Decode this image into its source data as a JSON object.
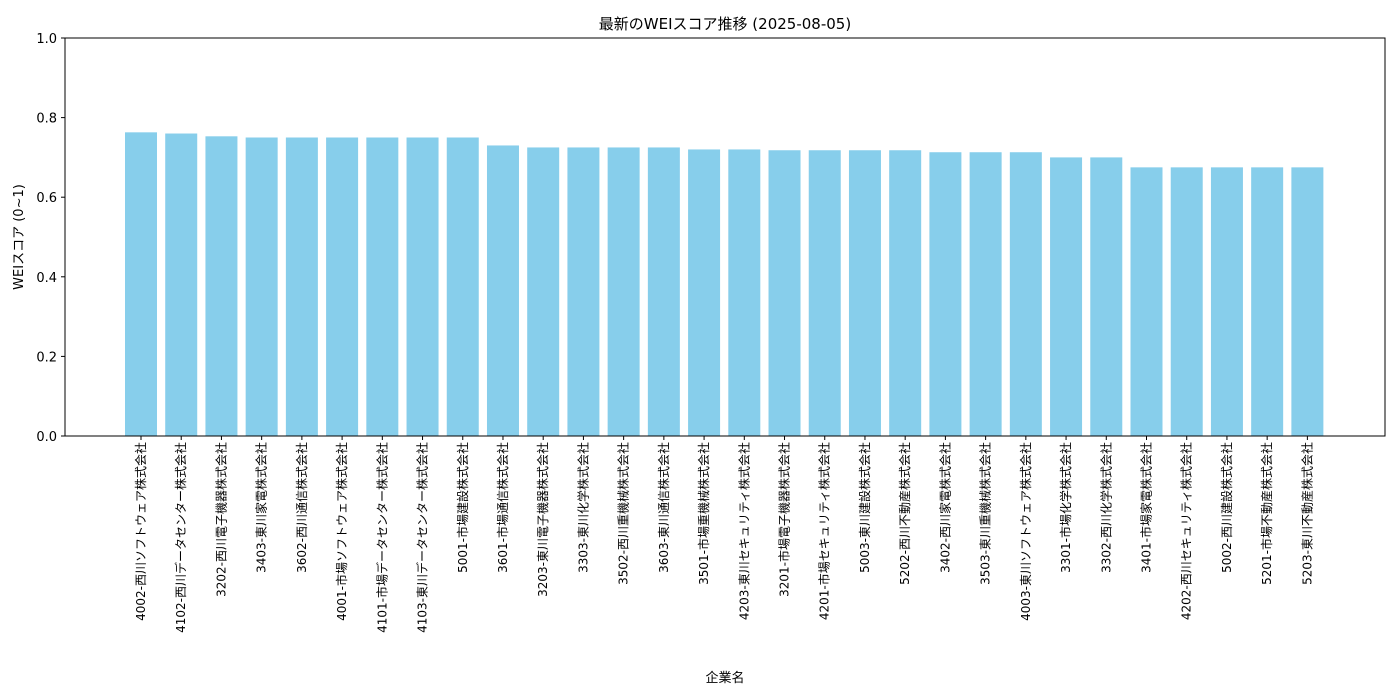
{
  "chart_data": {
    "type": "bar",
    "title": "最新のWEIスコア推移 (2025-08-05)",
    "xlabel": "企業名",
    "ylabel": "WEIスコア (0~1)",
    "ylim": [
      0,
      1.0
    ],
    "yticks": [
      "0.0",
      "0.2",
      "0.4",
      "0.6",
      "0.8",
      "1.0"
    ],
    "bar_color": "#87ceeb",
    "grid": false,
    "categories": [
      "4002-西川ソフトウェア株式会社",
      "4102-西川データセンター株式会社",
      "3202-西川電子機器株式会社",
      "3403-東川家電株式会社",
      "3602-西川通信株式会社",
      "4001-市場ソフトウェア株式会社",
      "4101-市場データセンター株式会社",
      "4103-東川データセンター株式会社",
      "5001-市場建設株式会社",
      "3601-市場通信株式会社",
      "3203-東川電子機器株式会社",
      "3303-東川化学株式会社",
      "3502-西川重機械株式会社",
      "3603-東川通信株式会社",
      "3501-市場重機械株式会社",
      "4203-東川セキュリティ株式会社",
      "3201-市場電子機器株式会社",
      "4201-市場セキュリティ株式会社",
      "5003-東川建設株式会社",
      "5202-西川不動産株式会社",
      "3402-西川家電株式会社",
      "3503-東川重機械株式会社",
      "4003-東川ソフトウェア株式会社",
      "3301-市場化学株式会社",
      "3302-西川化学株式会社",
      "3401-市場家電株式会社",
      "4202-西川セキュリティ株式会社",
      "5002-西川建設株式会社",
      "5201-市場不動産株式会社",
      "5203-東川不動産株式会社"
    ],
    "values": [
      0.763,
      0.76,
      0.753,
      0.75,
      0.75,
      0.75,
      0.75,
      0.75,
      0.75,
      0.73,
      0.725,
      0.725,
      0.725,
      0.725,
      0.72,
      0.72,
      0.718,
      0.718,
      0.718,
      0.718,
      0.713,
      0.713,
      0.713,
      0.7,
      0.7,
      0.675,
      0.675,
      0.675,
      0.675,
      0.675
    ]
  }
}
